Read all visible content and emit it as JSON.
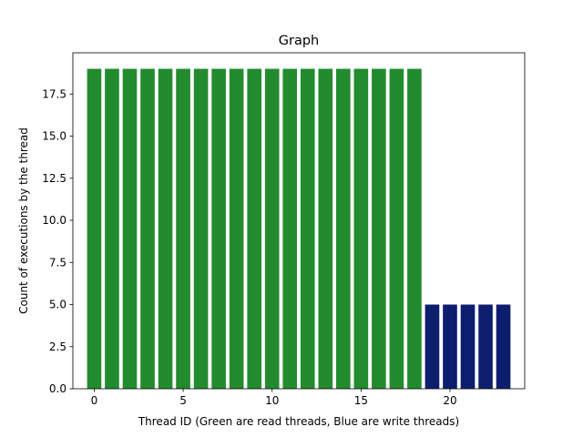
{
  "chart_data": {
    "type": "bar",
    "title": "Graph",
    "xlabel": "Thread ID (Green are read threads, Blue are write threads)",
    "ylabel": "Count of executions by the thread",
    "x": [
      0,
      1,
      2,
      3,
      4,
      5,
      6,
      7,
      8,
      9,
      10,
      11,
      12,
      13,
      14,
      15,
      16,
      17,
      18,
      19,
      20,
      21,
      22,
      23
    ],
    "series": [
      {
        "x": [
          0,
          1,
          2,
          3,
          4,
          5,
          6,
          7,
          8,
          9,
          10,
          11,
          12,
          13,
          14,
          15,
          16,
          17,
          18
        ],
        "values": [
          19,
          19,
          19,
          19,
          19,
          19,
          19,
          19,
          19,
          19,
          19,
          19,
          19,
          19,
          19,
          19,
          19,
          19,
          19
        ],
        "color": "#228b2e"
      },
      {
        "x": [
          19,
          20,
          21,
          22,
          23
        ],
        "values": [
          5,
          5,
          5,
          5,
          5
        ],
        "color": "#0e1e6e"
      }
    ],
    "xlim": [
      -1.2,
      24.2
    ],
    "ylim": [
      0,
      19.95
    ],
    "xticks": [
      0,
      5,
      10,
      15,
      20
    ],
    "xtick_labels": [
      "0",
      "5",
      "10",
      "15",
      "20"
    ],
    "yticks": [
      0,
      2.5,
      5,
      7.5,
      10,
      12.5,
      15,
      17.5
    ],
    "ytick_labels": [
      "0.0",
      "2.5",
      "5.0",
      "7.5",
      "10.0",
      "12.5",
      "15.0",
      "17.5"
    ],
    "grid": false,
    "legend": "none"
  }
}
